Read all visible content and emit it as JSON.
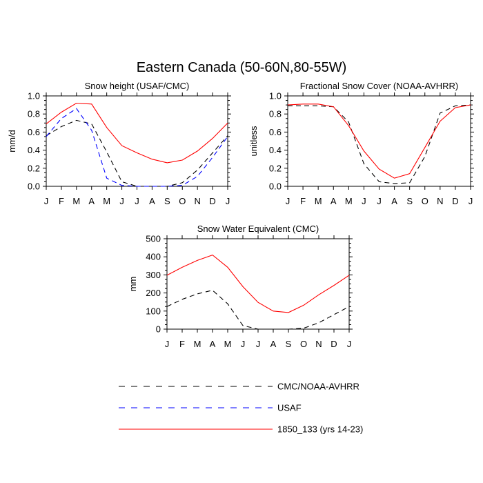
{
  "figure": {
    "title": "Eastern Canada (50-60N,80-55W)"
  },
  "legend": {
    "placement": "bottom",
    "entries": [
      {
        "label": "CMC/NOAA-AVHRR",
        "color": "#000000",
        "dash": "dashed"
      },
      {
        "label": "USAF",
        "color": "#0000ff",
        "dash": "dashed"
      },
      {
        "label": "1850_133 (yrs 14-23)",
        "color": "#ff0000",
        "dash": "solid"
      }
    ]
  },
  "chart_data": [
    {
      "type": "line",
      "title": "Snow height (USAF/CMC)",
      "ylabel": "mm/d",
      "xlabel": "",
      "categories": [
        "J",
        "F",
        "M",
        "A",
        "M",
        "J",
        "J",
        "A",
        "S",
        "O",
        "N",
        "D",
        "J"
      ],
      "ylim": [
        0,
        1.0
      ],
      "yticks": [
        0.0,
        0.2,
        0.4,
        0.6,
        0.8,
        1.0
      ],
      "ytick_labels": [
        "0.0",
        "0.2",
        "0.4",
        "0.6",
        "0.8",
        "1.0"
      ],
      "grid": false,
      "series": [
        {
          "name": "CMC/NOAA-AVHRR",
          "color": "#000000",
          "dash": "dashed",
          "values": [
            0.56,
            0.66,
            0.73,
            0.69,
            0.38,
            0.05,
            0.0,
            0.0,
            0.0,
            0.04,
            0.18,
            0.37,
            0.56
          ]
        },
        {
          "name": "USAF",
          "color": "#0000ff",
          "dash": "dashed",
          "values": [
            0.55,
            0.75,
            0.86,
            0.62,
            0.09,
            0.01,
            0.0,
            0.0,
            0.0,
            0.01,
            0.11,
            0.32,
            0.55
          ]
        },
        {
          "name": "1850_133 (yrs 14-23)",
          "color": "#ff0000",
          "dash": "solid",
          "values": [
            0.69,
            0.82,
            0.92,
            0.91,
            0.65,
            0.45,
            0.37,
            0.3,
            0.26,
            0.29,
            0.39,
            0.53,
            0.7
          ]
        }
      ]
    },
    {
      "type": "line",
      "title": "Fractional Snow Cover (NOAA-AVHRR)",
      "ylabel": "unitless",
      "xlabel": "",
      "categories": [
        "J",
        "F",
        "M",
        "A",
        "M",
        "J",
        "J",
        "A",
        "S",
        "O",
        "N",
        "D",
        "J"
      ],
      "ylim": [
        0,
        1.0
      ],
      "yticks": [
        0.0,
        0.2,
        0.4,
        0.6,
        0.8,
        1.0
      ],
      "ytick_labels": [
        "0.0",
        "0.2",
        "0.4",
        "0.6",
        "0.8",
        "1.0"
      ],
      "grid": false,
      "series": [
        {
          "name": "CMC/NOAA-AVHRR",
          "color": "#000000",
          "dash": "dashed",
          "values": [
            0.89,
            0.89,
            0.89,
            0.88,
            0.71,
            0.25,
            0.05,
            0.03,
            0.04,
            0.33,
            0.81,
            0.89,
            0.9
          ]
        },
        {
          "name": "1850_133 (yrs 14-23)",
          "color": "#ff0000",
          "dash": "solid",
          "values": [
            0.9,
            0.91,
            0.91,
            0.88,
            0.67,
            0.39,
            0.19,
            0.09,
            0.14,
            0.43,
            0.72,
            0.87,
            0.9
          ]
        }
      ]
    },
    {
      "type": "line",
      "title": "Snow Water Equivalent (CMC)",
      "ylabel": "mm",
      "xlabel": "",
      "categories": [
        "J",
        "F",
        "M",
        "A",
        "M",
        "J",
        "J",
        "A",
        "S",
        "O",
        "N",
        "D",
        "J"
      ],
      "ylim": [
        0,
        500
      ],
      "yticks": [
        0,
        100,
        200,
        300,
        400,
        500
      ],
      "ytick_labels": [
        "0",
        "100",
        "200",
        "300",
        "400",
        "500"
      ],
      "grid": false,
      "series": [
        {
          "name": "CMC/NOAA-AVHRR",
          "color": "#000000",
          "dash": "dashed",
          "values": [
            125,
            165,
            195,
            215,
            140,
            20,
            0,
            0,
            0,
            5,
            35,
            80,
            125
          ]
        },
        {
          "name": "1850_133 (yrs 14-23)",
          "color": "#ff0000",
          "dash": "solid",
          "values": [
            298,
            342,
            380,
            410,
            342,
            235,
            148,
            100,
            92,
            132,
            190,
            242,
            298
          ]
        }
      ]
    }
  ]
}
